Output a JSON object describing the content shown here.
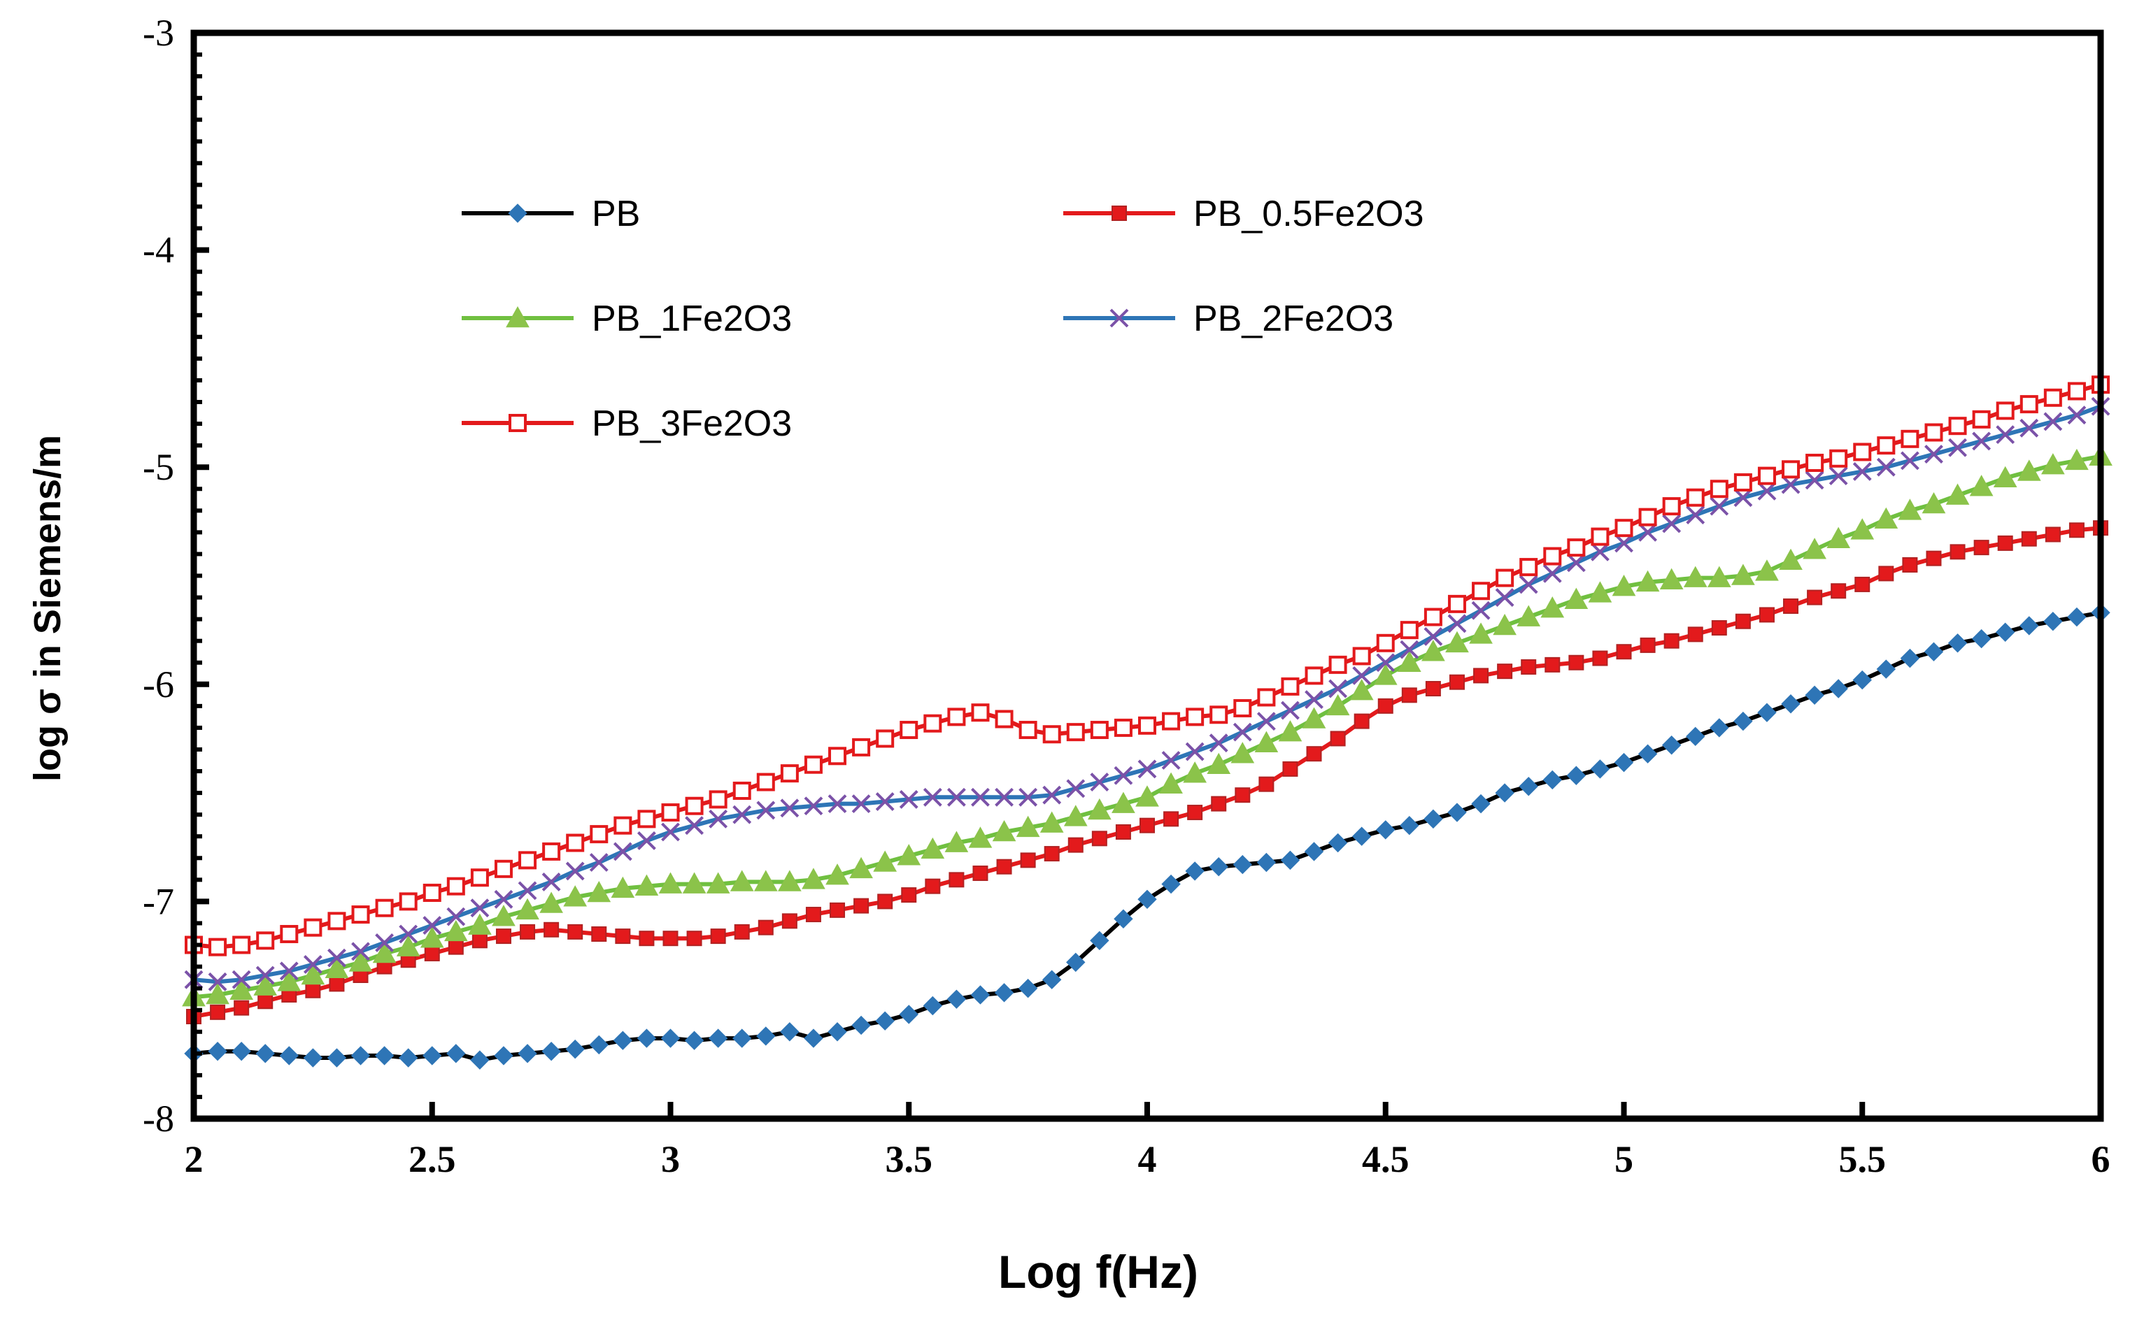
{
  "chart_data": {
    "type": "line",
    "title": "",
    "xlabel": "Log f(Hz)",
    "ylabel": "log σ in Siemens/m",
    "xlim": [
      2,
      6
    ],
    "ylim": [
      -8,
      -3
    ],
    "xticks": [
      "2",
      "2.5",
      "3",
      "3.5",
      "4",
      "4.5",
      "5",
      "5.5",
      "6"
    ],
    "yticks": [
      "-3",
      "-4",
      "-5",
      "-6",
      "-7",
      "-8"
    ],
    "grid": false,
    "legend_position": "upper-left",
    "x": [
      2,
      2.05,
      2.1,
      2.15,
      2.2,
      2.25,
      2.3,
      2.35,
      2.4,
      2.45,
      2.5,
      2.55,
      2.6,
      2.65,
      2.7,
      2.75,
      2.8,
      2.85,
      2.9,
      2.95,
      3,
      3.05,
      3.1,
      3.15,
      3.2,
      3.25,
      3.3,
      3.35,
      3.4,
      3.45,
      3.5,
      3.55,
      3.6,
      3.65,
      3.7,
      3.75,
      3.8,
      3.85,
      3.9,
      3.95,
      4,
      4.05,
      4.1,
      4.15,
      4.2,
      4.25,
      4.3,
      4.35,
      4.4,
      4.45,
      4.5,
      4.55,
      4.6,
      4.65,
      4.7,
      4.75,
      4.8,
      4.85,
      4.9,
      4.95,
      5,
      5.05,
      5.1,
      5.15,
      5.2,
      5.25,
      5.3,
      5.35,
      5.4,
      5.45,
      5.5,
      5.55,
      5.6,
      5.65,
      5.7,
      5.75,
      5.8,
      5.85,
      5.9,
      5.95,
      6
    ],
    "series": [
      {
        "name": "PB",
        "color": "#000000",
        "marker_color": "#2E75B6",
        "marker": "diamond",
        "values": [
          -7.7,
          -7.69,
          -7.69,
          -7.7,
          -7.71,
          -7.72,
          -7.72,
          -7.71,
          -7.71,
          -7.72,
          -7.71,
          -7.7,
          -7.73,
          -7.71,
          -7.7,
          -7.69,
          -7.68,
          -7.66,
          -7.64,
          -7.63,
          -7.63,
          -7.64,
          -7.63,
          -7.63,
          -7.62,
          -7.6,
          -7.63,
          -7.6,
          -7.57,
          -7.55,
          -7.52,
          -7.48,
          -7.45,
          -7.43,
          -7.42,
          -7.4,
          -7.36,
          -7.28,
          -7.18,
          -7.08,
          -6.99,
          -6.92,
          -6.86,
          -6.84,
          -6.83,
          -6.82,
          -6.81,
          -6.77,
          -6.73,
          -6.7,
          -6.67,
          -6.65,
          -6.62,
          -6.59,
          -6.55,
          -6.5,
          -6.47,
          -6.44,
          -6.42,
          -6.39,
          -6.36,
          -6.32,
          -6.28,
          -6.24,
          -6.2,
          -6.17,
          -6.13,
          -6.09,
          -6.05,
          -6.02,
          -5.98,
          -5.93,
          -5.88,
          -5.85,
          -5.81,
          -5.79,
          -5.76,
          -5.73,
          -5.71,
          -5.69,
          -5.67
        ]
      },
      {
        "name": "PB_0.5Fe2O3",
        "color": "#E31A1C",
        "marker_color": "#E31A1C",
        "marker": "square-filled",
        "values": [
          -7.53,
          -7.51,
          -7.49,
          -7.46,
          -7.43,
          -7.41,
          -7.38,
          -7.34,
          -7.3,
          -7.27,
          -7.24,
          -7.21,
          -7.18,
          -7.16,
          -7.14,
          -7.13,
          -7.14,
          -7.15,
          -7.16,
          -7.17,
          -7.17,
          -7.17,
          -7.16,
          -7.14,
          -7.12,
          -7.09,
          -7.06,
          -7.04,
          -7.02,
          -7.0,
          -6.97,
          -6.93,
          -6.9,
          -6.87,
          -6.84,
          -6.81,
          -6.78,
          -6.74,
          -6.71,
          -6.68,
          -6.65,
          -6.62,
          -6.59,
          -6.55,
          -6.51,
          -6.46,
          -6.39,
          -6.32,
          -6.25,
          -6.17,
          -6.1,
          -6.05,
          -6.02,
          -5.99,
          -5.96,
          -5.94,
          -5.92,
          -5.91,
          -5.9,
          -5.88,
          -5.85,
          -5.82,
          -5.8,
          -5.77,
          -5.74,
          -5.71,
          -5.68,
          -5.64,
          -5.6,
          -5.57,
          -5.54,
          -5.49,
          -5.45,
          -5.42,
          -5.39,
          -5.37,
          -5.35,
          -5.33,
          -5.31,
          -5.29,
          -5.28
        ]
      },
      {
        "name": "PB_1Fe2O3",
        "color": "#70C040",
        "marker_color": "#8BC34A",
        "marker": "triangle",
        "values": [
          -7.44,
          -7.43,
          -7.41,
          -7.39,
          -7.37,
          -7.34,
          -7.31,
          -7.28,
          -7.24,
          -7.21,
          -7.17,
          -7.14,
          -7.11,
          -7.07,
          -7.04,
          -7.01,
          -6.98,
          -6.96,
          -6.94,
          -6.93,
          -6.92,
          -6.92,
          -6.92,
          -6.91,
          -6.91,
          -6.91,
          -6.9,
          -6.88,
          -6.85,
          -6.82,
          -6.79,
          -6.76,
          -6.73,
          -6.71,
          -6.68,
          -6.66,
          -6.64,
          -6.61,
          -6.58,
          -6.55,
          -6.52,
          -6.46,
          -6.41,
          -6.37,
          -6.32,
          -6.27,
          -6.22,
          -6.16,
          -6.1,
          -6.03,
          -5.96,
          -5.9,
          -5.85,
          -5.81,
          -5.77,
          -5.73,
          -5.69,
          -5.65,
          -5.61,
          -5.58,
          -5.55,
          -5.53,
          -5.52,
          -5.51,
          -5.51,
          -5.5,
          -5.48,
          -5.43,
          -5.38,
          -5.33,
          -5.29,
          -5.24,
          -5.2,
          -5.17,
          -5.13,
          -5.09,
          -5.05,
          -5.02,
          -4.99,
          -4.97,
          -4.95
        ]
      },
      {
        "name": "PB_2Fe2O3",
        "color": "#2E75B6",
        "marker_color": "#7B52A8",
        "marker": "x",
        "values": [
          -7.36,
          -7.37,
          -7.36,
          -7.34,
          -7.32,
          -7.29,
          -7.26,
          -7.23,
          -7.19,
          -7.15,
          -7.11,
          -7.07,
          -7.03,
          -6.99,
          -6.95,
          -6.91,
          -6.86,
          -6.82,
          -6.77,
          -6.72,
          -6.68,
          -6.65,
          -6.62,
          -6.6,
          -6.58,
          -6.57,
          -6.56,
          -6.55,
          -6.55,
          -6.54,
          -6.53,
          -6.52,
          -6.52,
          -6.52,
          -6.52,
          -6.52,
          -6.51,
          -6.48,
          -6.45,
          -6.42,
          -6.39,
          -6.35,
          -6.31,
          -6.27,
          -6.22,
          -6.17,
          -6.12,
          -6.07,
          -6.02,
          -5.96,
          -5.9,
          -5.84,
          -5.78,
          -5.72,
          -5.66,
          -5.6,
          -5.54,
          -5.49,
          -5.44,
          -5.39,
          -5.35,
          -5.3,
          -5.26,
          -5.22,
          -5.18,
          -5.14,
          -5.11,
          -5.08,
          -5.06,
          -5.04,
          -5.02,
          -5.0,
          -4.97,
          -4.94,
          -4.91,
          -4.88,
          -4.85,
          -4.82,
          -4.79,
          -4.76,
          -4.72
        ]
      },
      {
        "name": "PB_3Fe2O3",
        "color": "#E31A1C",
        "marker_color": "#E31A1C",
        "marker": "square-open",
        "values": [
          -7.2,
          -7.21,
          -7.2,
          -7.18,
          -7.15,
          -7.12,
          -7.09,
          -7.06,
          -7.03,
          -7.0,
          -6.96,
          -6.93,
          -6.89,
          -6.85,
          -6.81,
          -6.77,
          -6.73,
          -6.69,
          -6.65,
          -6.62,
          -6.59,
          -6.56,
          -6.53,
          -6.49,
          -6.45,
          -6.41,
          -6.37,
          -6.33,
          -6.29,
          -6.25,
          -6.21,
          -6.18,
          -6.15,
          -6.13,
          -6.16,
          -6.21,
          -6.23,
          -6.22,
          -6.21,
          -6.2,
          -6.19,
          -6.17,
          -6.15,
          -6.14,
          -6.11,
          -6.06,
          -6.01,
          -5.96,
          -5.91,
          -5.87,
          -5.81,
          -5.75,
          -5.69,
          -5.63,
          -5.57,
          -5.51,
          -5.46,
          -5.41,
          -5.37,
          -5.32,
          -5.28,
          -5.23,
          -5.18,
          -5.14,
          -5.1,
          -5.07,
          -5.04,
          -5.01,
          -4.98,
          -4.96,
          -4.93,
          -4.9,
          -4.87,
          -4.84,
          -4.81,
          -4.78,
          -4.74,
          -4.71,
          -4.68,
          -4.65,
          -4.62
        ]
      }
    ]
  }
}
